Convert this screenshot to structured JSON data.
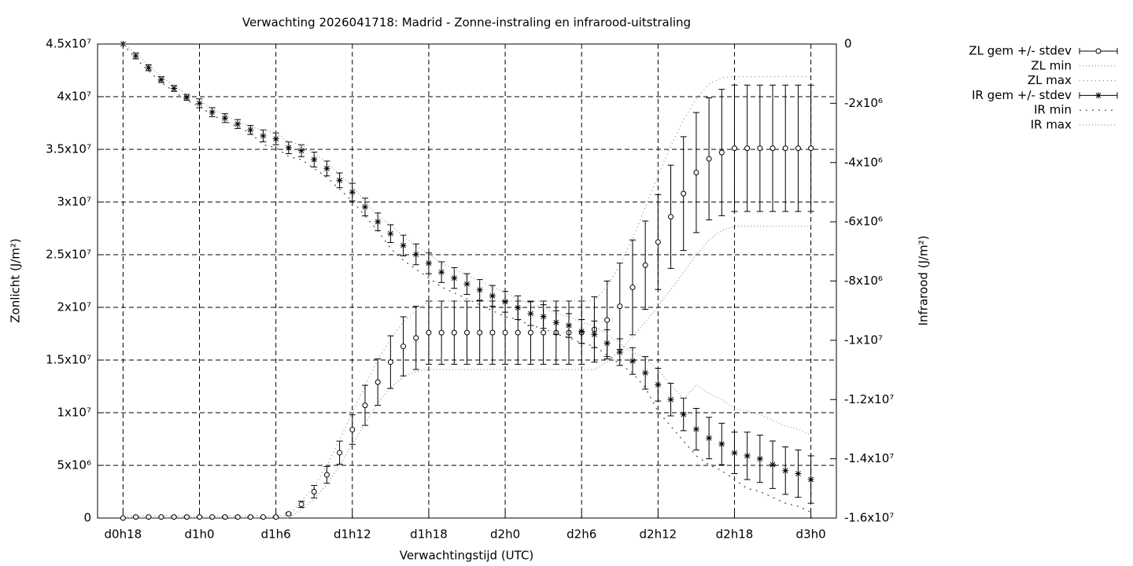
{
  "chart_data": {
    "type": "errorbar-line",
    "title": "Verwachting 2026041718: Madrid - Zonne-instraling en infrarood-uitstraling",
    "x_label": "Verwachtingstijd (UTC)",
    "y_label": "Zonlicht (J/m²)",
    "y2_label": "Infrarood (J/m²)",
    "x": [
      18,
      19,
      20,
      21,
      22,
      23,
      24,
      25,
      26,
      27,
      28,
      29,
      30,
      31,
      32,
      33,
      34,
      35,
      36,
      37,
      38,
      39,
      40,
      41,
      42,
      43,
      44,
      45,
      46,
      47,
      48,
      49,
      50,
      51,
      52,
      53,
      54,
      55,
      56,
      57,
      58,
      59,
      60,
      61,
      62,
      63,
      64,
      65,
      66,
      67,
      68,
      69,
      70,
      71,
      72
    ],
    "xlim": [
      16,
      74
    ],
    "xticks": [
      {
        "value": 18,
        "label": "d0h18"
      },
      {
        "value": 24,
        "label": "d1h0"
      },
      {
        "value": 30,
        "label": "d1h6"
      },
      {
        "value": 36,
        "label": "d1h12"
      },
      {
        "value": 42,
        "label": "d1h18"
      },
      {
        "value": 48,
        "label": "d2h0"
      },
      {
        "value": 54,
        "label": "d2h6"
      },
      {
        "value": 60,
        "label": "d2h12"
      },
      {
        "value": 66,
        "label": "d2h18"
      },
      {
        "value": 72,
        "label": "d3h0"
      }
    ],
    "ylim": [
      0,
      45000000.0
    ],
    "yticks": [
      0,
      {
        "value": 5000000.0,
        "label": "5x10⁶"
      },
      {
        "value": 10000000.0,
        "label": "1x10⁷"
      },
      {
        "value": 15000000.0,
        "label": "1.5x10⁷"
      },
      {
        "value": 20000000.0,
        "label": "2x10⁷"
      },
      {
        "value": 25000000.0,
        "label": "2.5x10⁷"
      },
      {
        "value": 30000000.0,
        "label": "3x10⁷"
      },
      {
        "value": 35000000.0,
        "label": "3.5x10⁷"
      },
      {
        "value": 40000000.0,
        "label": "4x10⁷"
      },
      {
        "value": 45000000.0,
        "label": "4.5x10⁷"
      }
    ],
    "y2lim": [
      -16000000.0,
      0
    ],
    "y2ticks": [
      0,
      {
        "value": -2000000.0,
        "label": "-2x10⁶"
      },
      {
        "value": -4000000.0,
        "label": "-4x10⁶"
      },
      {
        "value": -6000000.0,
        "label": "-6x10⁶"
      },
      {
        "value": -8000000.0,
        "label": "-8x10⁶"
      },
      {
        "value": -10000000.0,
        "label": "-1x10⁷"
      },
      {
        "value": -12000000.0,
        "label": "-1.2x10⁷"
      },
      {
        "value": -14000000.0,
        "label": "-1.4x10⁷"
      },
      {
        "value": -16000000.0,
        "label": "-1.6x10⁷"
      }
    ],
    "grid": true,
    "legend": "top-right-outside",
    "series": [
      {
        "name": "ZL gem +/- stdev",
        "color": "#000000",
        "marker": "circle",
        "values": [
          0,
          100000.0,
          100000.0,
          100000.0,
          100000.0,
          100000.0,
          100000.0,
          100000.0,
          100000.0,
          100000.0,
          100000.0,
          100000.0,
          100000.0,
          400000.0,
          1300000.0,
          2500000.0,
          4100000.0,
          6200000.0,
          8400000.0,
          10700000.0,
          12900000.0,
          14800000.0,
          16300000.0,
          17100000.0,
          17600000.0,
          17600000.0,
          17600000.0,
          17600000.0,
          17600000.0,
          17600000.0,
          17600000.0,
          17600000.0,
          17600000.0,
          17600000.0,
          17600000.0,
          17600000.0,
          17600000.0,
          17900000.0,
          18800000.0,
          20100000.0,
          21900000.0,
          24000000.0,
          26200000.0,
          28600000.0,
          30800000.0,
          32800000.0,
          34100000.0,
          34700000.0,
          35100000.0,
          35100000.0,
          35100000.0,
          35100000.0,
          35100000.0,
          35100000.0,
          35100000.0
        ],
        "errors": [
          0,
          0,
          0,
          0,
          0,
          0,
          0,
          0,
          0,
          0,
          0,
          0,
          0,
          100000.0,
          300000.0,
          600000.0,
          800000.0,
          1100000.0,
          1400000.0,
          1900000.0,
          2200000.0,
          2500000.0,
          2800000.0,
          3000000.0,
          3000000.0,
          3000000.0,
          3000000.0,
          3000000.0,
          3000000.0,
          3000000.0,
          3000000.0,
          3000000.0,
          3000000.0,
          3000000.0,
          3000000.0,
          3000000.0,
          3000000.0,
          3100000.0,
          3700000.0,
          4100000.0,
          4500000.0,
          4200000.0,
          4500000.0,
          4900000.0,
          5400000.0,
          5700000.0,
          5800000.0,
          6000000.0,
          6000000.0,
          6000000.0,
          6000000.0,
          6000000.0,
          6000000.0,
          6000000.0,
          6000000.0
        ]
      },
      {
        "name": "ZL min",
        "color": "#888888",
        "values": [
          0,
          0,
          0,
          0,
          0,
          0,
          0,
          0,
          0,
          0,
          0,
          0,
          0,
          0,
          800000.0,
          1800000.0,
          3200000.0,
          5000000.0,
          7000000.0,
          9000000.0,
          10900000.0,
          12400000.0,
          13400000.0,
          13900000.0,
          14100000.0,
          14100000.0,
          14100000.0,
          14100000.0,
          14100000.0,
          14100000.0,
          14100000.0,
          14100000.0,
          14100000.0,
          14100000.0,
          14100000.0,
          14100000.0,
          14100000.0,
          14100000.0,
          14800000.0,
          15900000.0,
          17200000.0,
          18600000.0,
          20100000.0,
          21700000.0,
          23300000.0,
          25000000.0,
          26400000.0,
          27300000.0,
          27700000.0,
          27700000.0,
          27700000.0,
          27700000.0,
          27700000.0,
          27700000.0,
          27700000.0
        ]
      },
      {
        "name": "ZL max",
        "color": "#888888",
        "values": [
          200000.0,
          200000.0,
          200000.0,
          200000.0,
          200000.0,
          200000.0,
          200000.0,
          200000.0,
          200000.0,
          200000.0,
          200000.0,
          200000.0,
          200000.0,
          200000.0,
          1600000.0,
          3000000.0,
          5000000.0,
          7400000.0,
          10000000.0,
          12600000.0,
          15000000.0,
          17000000.0,
          18600000.0,
          19700000.0,
          20600000.0,
          20600000.0,
          20600000.0,
          20600000.0,
          20600000.0,
          20600000.0,
          20600000.0,
          20600000.0,
          20600000.0,
          20600000.0,
          20600000.0,
          20600000.0,
          20600000.0,
          20600000.0,
          22000000.0,
          24000000.0,
          26500000.0,
          29500000.0,
          32500000.0,
          35300000.0,
          37800000.0,
          39800000.0,
          41200000.0,
          41800000.0,
          41900000.0,
          41900000.0,
          41900000.0,
          41900000.0,
          41900000.0,
          41900000.0,
          41900000.0
        ]
      },
      {
        "name": "IR gem +/- stdev",
        "color": "#000000",
        "marker": "star",
        "axis": "y2",
        "values": [
          0,
          -400000.0,
          -800000.0,
          -1200000.0,
          -1500000.0,
          -1800000.0,
          -2000000.0,
          -2300000.0,
          -2500000.0,
          -2700000.0,
          -2900000.0,
          -3100000.0,
          -3200000.0,
          -3500000.0,
          -3600000.0,
          -3900000.0,
          -4200000.0,
          -4600000.0,
          -5000000.0,
          -5500000.0,
          -6000000.0,
          -6400000.0,
          -6800000.0,
          -7100000.0,
          -7400000.0,
          -7700000.0,
          -7900000.0,
          -8100000.0,
          -8300000.0,
          -8500000.0,
          -8700000.0,
          -8900000.0,
          -9100000.0,
          -9200000.0,
          -9400000.0,
          -9500000.0,
          -9700000.0,
          -9800000.0,
          -10100000.0,
          -10400000.0,
          -10700000.0,
          -11100000.0,
          -11500000.0,
          -12000000.0,
          -12500000.0,
          -13000000.0,
          -13300000.0,
          -13500000.0,
          -13800000.0,
          -13900000.0,
          -14000000.0,
          -14200000.0,
          -14400000.0,
          -14500000.0,
          -14700000.0
        ],
        "errors": [
          0,
          100000.0,
          100000.0,
          100000.0,
          100000.0,
          100000.0,
          150000.0,
          150000.0,
          150000.0,
          150000.0,
          150000.0,
          200000.0,
          200000.0,
          200000.0,
          200000.0,
          250000.0,
          250000.0,
          250000.0,
          300000.0,
          300000.0,
          300000.0,
          300000.0,
          350000.0,
          350000.0,
          350000.0,
          350000.0,
          350000.0,
          350000.0,
          350000.0,
          350000.0,
          350000.0,
          400000.0,
          400000.0,
          400000.0,
          400000.0,
          400000.0,
          400000.0,
          450000.0,
          450000.0,
          450000.0,
          450000.0,
          550000.0,
          550000.0,
          550000.0,
          550000.0,
          700000.0,
          700000.0,
          700000.0,
          700000.0,
          800000.0,
          800000.0,
          800000.0,
          800000.0,
          800000.0,
          800000.0
        ]
      },
      {
        "name": "IR min",
        "color": "#444444",
        "axis": "y2",
        "values": [
          0,
          -500000.0,
          -900000.0,
          -1300000.0,
          -1600000.0,
          -1900000.0,
          -2100000.0,
          -2400000.0,
          -2600000.0,
          -2800000.0,
          -3000000.0,
          -3400000.0,
          -3500000.0,
          -3800000.0,
          -3900000.0,
          -4200000.0,
          -4500000.0,
          -4900000.0,
          -5300000.0,
          -5800000.0,
          -6300000.0,
          -6900000.0,
          -7300000.0,
          -7600000.0,
          -7900000.0,
          -8200000.0,
          -8400000.0,
          -8600000.0,
          -8800000.0,
          -9000000.0,
          -9200000.0,
          -9300000.0,
          -9500000.0,
          -9600000.0,
          -9800000.0,
          -9900000.0,
          -10100000.0,
          -10200000.0,
          -10500000.0,
          -10800000.0,
          -11100000.0,
          -11600000.0,
          -12400000.0,
          -12900000.0,
          -13400000.0,
          -13900000.0,
          -14200000.0,
          -14400000.0,
          -14700000.0,
          -15000000.0,
          -15100000.0,
          -15300000.0,
          -15500000.0,
          -15600000.0,
          -15800000.0
        ]
      },
      {
        "name": "IR max",
        "color": "#999999",
        "axis": "y2",
        "values": [
          0,
          -300000.0,
          -700000.0,
          -1100000.0,
          -1400000.0,
          -1700000.0,
          -1900000.0,
          -2200000.0,
          -2400000.0,
          -2600000.0,
          -2800000.0,
          -2900000.0,
          -3000000.0,
          -3300000.0,
          -3400000.0,
          -3700000.0,
          -4000000.0,
          -4400000.0,
          -4800000.0,
          -5300000.0,
          -5800000.0,
          -6100000.0,
          -6500000.0,
          -6800000.0,
          -7100000.0,
          -7400000.0,
          -7600000.0,
          -7800000.0,
          -8000000.0,
          -8200000.0,
          -8400000.0,
          -8600000.0,
          -8800000.0,
          -8900000.0,
          -9100000.0,
          -9200000.0,
          -9400000.0,
          -9500000.0,
          -9800000.0,
          -10100000.0,
          -10400000.0,
          -10600000.0,
          -11000000.0,
          -11500000.0,
          -12000000.0,
          -11500000.0,
          -11800000.0,
          -12000000.0,
          -12300000.0,
          -12400000.0,
          -12500000.0,
          -12700000.0,
          -12900000.0,
          -13000000.0,
          -13200000.0
        ]
      }
    ]
  }
}
